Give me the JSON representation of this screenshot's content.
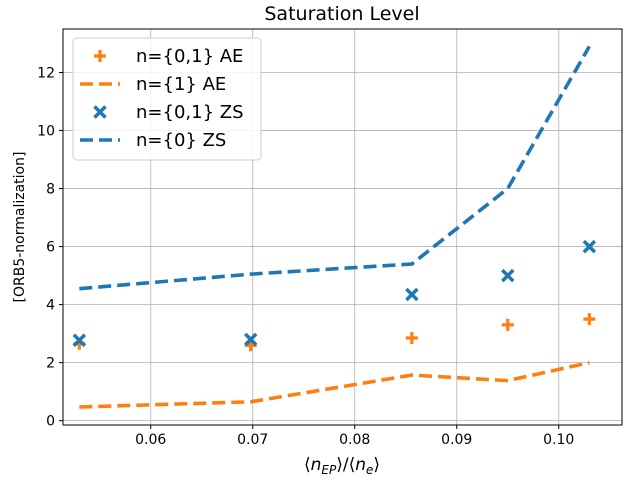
{
  "chart_data": {
    "type": "line",
    "title": "Saturation Level",
    "xlabel": "⟨n_EP⟩/⟨n_e⟩",
    "ylabel": "[ORB5-normalization]",
    "xlim": [
      0.0514,
      0.1062
    ],
    "ylim": [
      -0.15,
      13.5
    ],
    "xticks": [
      0.06,
      0.07,
      0.08,
      0.09,
      0.1
    ],
    "xtick_labels": [
      "0.06",
      "0.07",
      "0.08",
      "0.09",
      "0.10"
    ],
    "yticks": [
      0,
      2,
      4,
      6,
      8,
      10,
      12
    ],
    "ytick_labels": [
      "0",
      "2",
      "4",
      "6",
      "8",
      "10",
      "12"
    ],
    "grid": true,
    "legend_position": "upper-left",
    "series": [
      {
        "name": "n={0,1} AE",
        "style": "plus-marker",
        "color": "#ff7f0e",
        "x": [
          0.053,
          0.0698,
          0.0856,
          0.095,
          0.103
        ],
        "y": [
          2.65,
          2.6,
          2.85,
          3.3,
          3.5
        ]
      },
      {
        "name": "n={1} AE",
        "style": "dashed-line",
        "color": "#ff7f0e",
        "x": [
          0.053,
          0.0698,
          0.0856,
          0.095,
          0.103
        ],
        "y": [
          0.47,
          0.65,
          1.57,
          1.38,
          2.0
        ]
      },
      {
        "name": "n={0,1} ZS",
        "style": "x-marker",
        "color": "#1f77b4",
        "x": [
          0.053,
          0.0698,
          0.0856,
          0.095,
          0.103
        ],
        "y": [
          2.77,
          2.8,
          4.35,
          5.0,
          6.0
        ]
      },
      {
        "name": "n={0} ZS",
        "style": "dashed-line",
        "color": "#1f77b4",
        "x": [
          0.053,
          0.0698,
          0.0856,
          0.095,
          0.103
        ],
        "y": [
          4.55,
          5.05,
          5.4,
          8.0,
          12.9
        ]
      }
    ]
  }
}
